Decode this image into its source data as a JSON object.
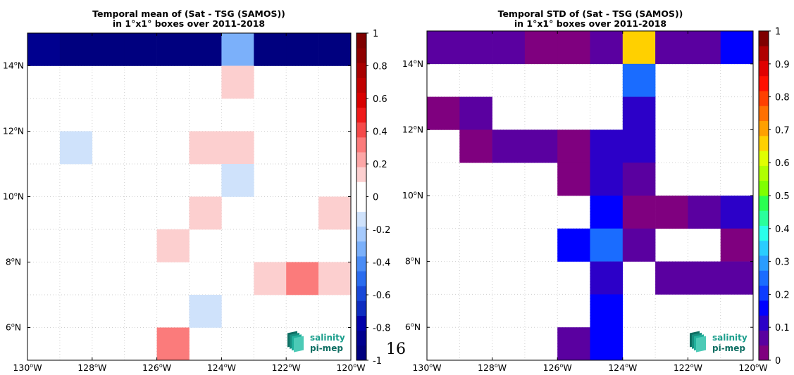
{
  "page_number": "16",
  "logo": {
    "line1": "salinity",
    "line2": "pi-mep"
  },
  "chart_data": [
    {
      "type": "heatmap",
      "title": "Temporal mean of (Sat - TSG (SAMOS))",
      "subtitle": "in 1°x1° boxes over 2011-2018",
      "xlim": [
        -130,
        -120
      ],
      "ylim": [
        5,
        15
      ],
      "grid": true,
      "x_ticks": [
        {
          "value": -130,
          "label": "130°W"
        },
        {
          "value": -128,
          "label": "128°W"
        },
        {
          "value": -126,
          "label": "126°W"
        },
        {
          "value": -124,
          "label": "124°W"
        },
        {
          "value": -122,
          "label": "122°W"
        },
        {
          "value": -120,
          "label": "120°W"
        }
      ],
      "y_ticks": [
        {
          "value": 6,
          "label": "6°N"
        },
        {
          "value": 8,
          "label": "8°N"
        },
        {
          "value": 10,
          "label": "10°N"
        },
        {
          "value": 12,
          "label": "12°N"
        },
        {
          "value": 14,
          "label": "14°N"
        }
      ],
      "colorbar": {
        "min": -1,
        "max": 1,
        "colors": [
          "#00007f",
          "#00008f",
          "#0000a8",
          "#0d2cc0",
          "#1848d8",
          "#2a6cef",
          "#4a8cf5",
          "#7bb0fa",
          "#a6cafc",
          "#cfe2fb",
          "#ffffff",
          "#ffffff",
          "#fccfcf",
          "#fca6a6",
          "#fb7b7b",
          "#f54a4a",
          "#ef1a1a",
          "#d80000",
          "#c00000",
          "#a80000",
          "#8f0000",
          "#7f0000"
        ],
        "ticks": [
          {
            "value": 1,
            "label": "1"
          },
          {
            "value": 0.8,
            "label": "0.8"
          },
          {
            "value": 0.6,
            "label": "0.6"
          },
          {
            "value": 0.4,
            "label": "0.4"
          },
          {
            "value": 0.2,
            "label": "0.2"
          },
          {
            "value": 0,
            "label": "0"
          },
          {
            "value": -0.2,
            "label": "-0.2"
          },
          {
            "value": -0.4,
            "label": "-0.4"
          },
          {
            "value": -0.6,
            "label": "-0.6"
          },
          {
            "value": -0.8,
            "label": "-0.8"
          },
          {
            "value": -1,
            "label": "-1"
          }
        ]
      },
      "cells": [
        {
          "lon": -130,
          "lat": 14,
          "value": -0.9
        },
        {
          "lon": -129,
          "lat": 14,
          "value": -1.0
        },
        {
          "lon": -128,
          "lat": 14,
          "value": -1.0
        },
        {
          "lon": -127,
          "lat": 14,
          "value": -1.0
        },
        {
          "lon": -126,
          "lat": 14,
          "value": -1.0
        },
        {
          "lon": -125,
          "lat": 14,
          "value": -1.0
        },
        {
          "lon": -124,
          "lat": 14,
          "value": -0.3
        },
        {
          "lon": -123,
          "lat": 14,
          "value": -1.0
        },
        {
          "lon": -122,
          "lat": 14,
          "value": -1.0
        },
        {
          "lon": -121,
          "lat": 14,
          "value": -1.0
        },
        {
          "lon": -124,
          "lat": 13,
          "value": 0.15
        },
        {
          "lon": -129,
          "lat": 11,
          "value": -0.15
        },
        {
          "lon": -125,
          "lat": 11,
          "value": 0.15
        },
        {
          "lon": -124,
          "lat": 11,
          "value": 0.15
        },
        {
          "lon": -124,
          "lat": 10,
          "value": -0.15
        },
        {
          "lon": -125,
          "lat": 9,
          "value": 0.15
        },
        {
          "lon": -121,
          "lat": 9,
          "value": 0.15
        },
        {
          "lon": -126,
          "lat": 8,
          "value": 0.15
        },
        {
          "lon": -123,
          "lat": 7,
          "value": 0.15
        },
        {
          "lon": -122,
          "lat": 7,
          "value": 0.3
        },
        {
          "lon": -121,
          "lat": 7,
          "value": 0.15
        },
        {
          "lon": -125,
          "lat": 6,
          "value": -0.15
        },
        {
          "lon": -126,
          "lat": 5,
          "value": 0.3
        }
      ]
    },
    {
      "type": "heatmap",
      "title": "Temporal STD of (Sat - TSG (SAMOS))",
      "subtitle": "in 1°x1° boxes over 2011-2018",
      "xlim": [
        -130,
        -120
      ],
      "ylim": [
        5,
        15
      ],
      "grid": true,
      "x_ticks": [
        {
          "value": -130,
          "label": "130°W"
        },
        {
          "value": -128,
          "label": "128°W"
        },
        {
          "value": -126,
          "label": "126°W"
        },
        {
          "value": -124,
          "label": "124°W"
        },
        {
          "value": -122,
          "label": "122°W"
        },
        {
          "value": -120,
          "label": "120°W"
        }
      ],
      "y_ticks": [
        {
          "value": 6,
          "label": "6°N"
        },
        {
          "value": 8,
          "label": "8°N"
        },
        {
          "value": 10,
          "label": "10°N"
        },
        {
          "value": 12,
          "label": "12°N"
        },
        {
          "value": 14,
          "label": "14°N"
        }
      ],
      "colorbar": {
        "min": 0,
        "max": 1,
        "colors": [
          "#7f007f",
          "#5a00a0",
          "#2c00c8",
          "#0000ff",
          "#0d3cff",
          "#1a6cff",
          "#2a9cff",
          "#2acdff",
          "#2affea",
          "#2aff9c",
          "#2aff50",
          "#7fff00",
          "#b0ff00",
          "#e0ff00",
          "#ffd000",
          "#ffa000",
          "#ff7000",
          "#ff4000",
          "#ff1000",
          "#e00000",
          "#b00000",
          "#7f0000"
        ],
        "ticks": [
          {
            "value": 1,
            "label": "1"
          },
          {
            "value": 0.9,
            "label": "0.9"
          },
          {
            "value": 0.8,
            "label": "0.8"
          },
          {
            "value": 0.7,
            "label": "0.7"
          },
          {
            "value": 0.6,
            "label": "0.6"
          },
          {
            "value": 0.5,
            "label": "0.5"
          },
          {
            "value": 0.4,
            "label": "0.4"
          },
          {
            "value": 0.3,
            "label": "0.3"
          },
          {
            "value": 0.2,
            "label": "0.2"
          },
          {
            "value": 0.1,
            "label": "0.1"
          },
          {
            "value": 0,
            "label": "0"
          }
        ]
      },
      "cells": [
        {
          "lon": -130,
          "lat": 14,
          "value": 0.08
        },
        {
          "lon": -129,
          "lat": 14,
          "value": 0.08
        },
        {
          "lon": -128,
          "lat": 14,
          "value": 0.08
        },
        {
          "lon": -127,
          "lat": 14,
          "value": 0.02
        },
        {
          "lon": -126,
          "lat": 14,
          "value": 0.02
        },
        {
          "lon": -125,
          "lat": 14,
          "value": 0.08
        },
        {
          "lon": -124,
          "lat": 14,
          "value": 0.68
        },
        {
          "lon": -123,
          "lat": 14,
          "value": 0.08
        },
        {
          "lon": -122,
          "lat": 14,
          "value": 0.08
        },
        {
          "lon": -121,
          "lat": 14,
          "value": 0.18
        },
        {
          "lon": -124,
          "lat": 13,
          "value": 0.26
        },
        {
          "lon": -124,
          "lat": 12,
          "value": 0.13
        },
        {
          "lon": -130,
          "lat": 12,
          "value": 0.02
        },
        {
          "lon": -129,
          "lat": 12,
          "value": 0.08
        },
        {
          "lon": -129,
          "lat": 11,
          "value": 0.02
        },
        {
          "lon": -128,
          "lat": 11,
          "value": 0.08
        },
        {
          "lon": -127,
          "lat": 11,
          "value": 0.08
        },
        {
          "lon": -126,
          "lat": 11,
          "value": 0.02
        },
        {
          "lon": -125,
          "lat": 11,
          "value": 0.13
        },
        {
          "lon": -124,
          "lat": 11,
          "value": 0.13
        },
        {
          "lon": -126,
          "lat": 10,
          "value": 0.02
        },
        {
          "lon": -125,
          "lat": 10,
          "value": 0.13
        },
        {
          "lon": -124,
          "lat": 10,
          "value": 0.08
        },
        {
          "lon": -125,
          "lat": 9,
          "value": 0.18
        },
        {
          "lon": -124,
          "lat": 9,
          "value": 0.02
        },
        {
          "lon": -123,
          "lat": 9,
          "value": 0.02
        },
        {
          "lon": -122,
          "lat": 9,
          "value": 0.08
        },
        {
          "lon": -121,
          "lat": 9,
          "value": 0.13
        },
        {
          "lon": -126,
          "lat": 8,
          "value": 0.18
        },
        {
          "lon": -125,
          "lat": 8,
          "value": 0.23
        },
        {
          "lon": -124,
          "lat": 8,
          "value": 0.08
        },
        {
          "lon": -121,
          "lat": 8,
          "value": 0.02
        },
        {
          "lon": -125,
          "lat": 7,
          "value": 0.13
        },
        {
          "lon": -123,
          "lat": 7,
          "value": 0.08
        },
        {
          "lon": -122,
          "lat": 7,
          "value": 0.08
        },
        {
          "lon": -121,
          "lat": 7,
          "value": 0.08
        },
        {
          "lon": -125,
          "lat": 6,
          "value": 0.18
        },
        {
          "lon": -126,
          "lat": 5,
          "value": 0.08
        },
        {
          "lon": -125,
          "lat": 5,
          "value": 0.18
        }
      ]
    }
  ]
}
